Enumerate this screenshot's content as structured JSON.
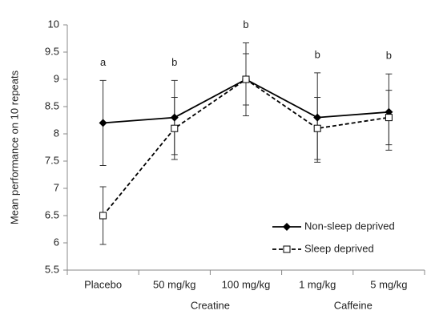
{
  "chart_data": {
    "type": "line",
    "y_label": "Mean performance on 10 repeats",
    "categories": [
      "Placebo",
      "50 mg/kg",
      "100 mg/kg",
      "1 mg/kg",
      "5 mg/kg"
    ],
    "group_labels": [
      "Creatine",
      "Caffeine"
    ],
    "annotations": [
      "a",
      "b",
      "b",
      "b",
      "b"
    ],
    "series": [
      {
        "name": "Non-sleep deprived",
        "color": "#000000",
        "marker": "diamond",
        "dash": "solid",
        "values": [
          8.2,
          8.3,
          9.0,
          8.3,
          8.4
        ],
        "errors": [
          0.78,
          0.68,
          0.67,
          0.82,
          0.7
        ]
      },
      {
        "name": "Sleep deprived",
        "color": "#000000",
        "marker": "square",
        "dash": "dashed",
        "values": [
          6.5,
          8.1,
          9.0,
          8.1,
          8.3
        ],
        "errors": [
          0.53,
          0.57,
          0.47,
          0.57,
          0.5
        ]
      }
    ],
    "ylim": [
      5.5,
      10
    ],
    "yticks": [
      5.5,
      6,
      6.5,
      7,
      7.5,
      8,
      8.5,
      9,
      9.5,
      10
    ],
    "grid": false,
    "legend": "lower right"
  }
}
